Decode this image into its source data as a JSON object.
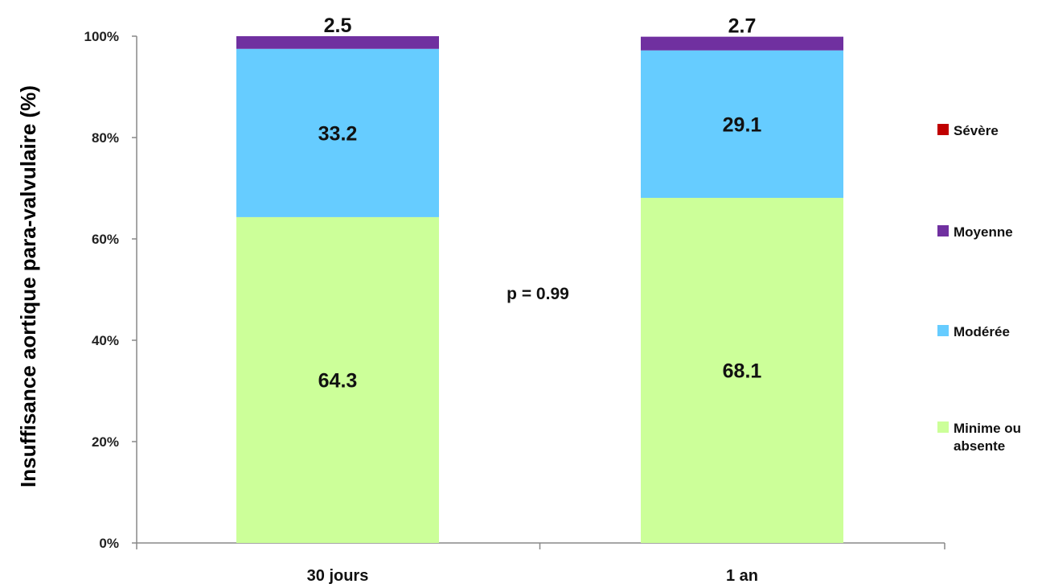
{
  "chart_data": {
    "type": "bar",
    "stacked": true,
    "categories": [
      "30 jours",
      "1 an"
    ],
    "series": [
      {
        "name": "Minime ou absente",
        "color": "#ccff99",
        "values": [
          64.3,
          68.1
        ]
      },
      {
        "name": "Modérée",
        "color": "#66ccff",
        "values": [
          33.2,
          29.1
        ]
      },
      {
        "name": "Moyenne",
        "color": "#7030a0",
        "values": [
          2.5,
          2.7
        ]
      },
      {
        "name": "Sévère",
        "color": "#c00000",
        "values": [
          0,
          0
        ]
      }
    ],
    "data_labels": [
      [
        "64.3",
        "68.1"
      ],
      [
        "33.2",
        "29.1"
      ],
      [
        "2.5",
        "2.7"
      ]
    ],
    "ylabel": "Insuffisance aortique para-valvulaire (%)",
    "xlabel": "",
    "ylim": [
      0,
      100
    ],
    "yticks": [
      "0%",
      "20%",
      "40%",
      "60%",
      "80%",
      "100%"
    ],
    "annotation": "p = 0.99",
    "legend_order": [
      "Sévère",
      "Moyenne",
      "Modérée",
      "Minime ou absente"
    ],
    "legend_lines": {
      "Sévère": [
        "Sévère"
      ],
      "Moyenne": [
        "Moyenne"
      ],
      "Modérée": [
        "Modérée"
      ],
      "Minime ou absente": [
        "Minime ou",
        "absente"
      ]
    },
    "legend_position": "right",
    "grid": false
  }
}
